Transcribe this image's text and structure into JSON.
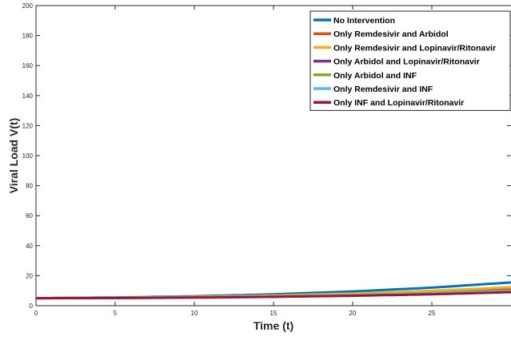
{
  "chart_data": {
    "type": "line",
    "xlabel": "Time (t)",
    "ylabel": "Viral Load V(t)",
    "xlim": [
      0,
      30
    ],
    "ylim": [
      0,
      200
    ],
    "xticks": [
      0,
      5,
      10,
      15,
      20,
      25
    ],
    "yticks": [
      0,
      20,
      40,
      60,
      80,
      100,
      120,
      140,
      160,
      180,
      200
    ],
    "grid": false,
    "legend_position": "top-right",
    "x": [
      0,
      5,
      10,
      15,
      20,
      25,
      30
    ],
    "series": [
      {
        "name": "No Intervention",
        "color": "#0072BD",
        "values": [
          5,
          5.5,
          6.3,
          7.6,
          9.5,
          12,
          15.5
        ]
      },
      {
        "name": "Only Remdesivir and Arbidol",
        "color": "#D95319",
        "values": [
          5,
          5.3,
          5.8,
          6.6,
          7.8,
          9.4,
          11.5
        ]
      },
      {
        "name": "Only Remdesivir and Lopinavir/Ritonavir",
        "color": "#EDB120",
        "values": [
          5,
          5.3,
          5.9,
          6.8,
          8.1,
          9.9,
          12.3
        ]
      },
      {
        "name": "Only Arbidol and Lopinavir/Ritonavir",
        "color": "#7E2F8E",
        "values": [
          5,
          5.2,
          5.5,
          6.0,
          6.8,
          7.9,
          9.3
        ]
      },
      {
        "name": "Only Arbidol and INF",
        "color": "#77AC30",
        "values": [
          5,
          5.2,
          5.6,
          6.2,
          7.1,
          8.4,
          10.0
        ]
      },
      {
        "name": "Only Remdesivir and INF",
        "color": "#4DBEEE",
        "values": [
          5,
          5.2,
          5.6,
          6.1,
          7.0,
          8.2,
          9.8
        ]
      },
      {
        "name": "Only INF and Lopinavir/Ritonavir",
        "color": "#A2142F",
        "values": [
          5,
          5.1,
          5.4,
          5.9,
          6.6,
          7.6,
          9.0
        ]
      }
    ]
  }
}
